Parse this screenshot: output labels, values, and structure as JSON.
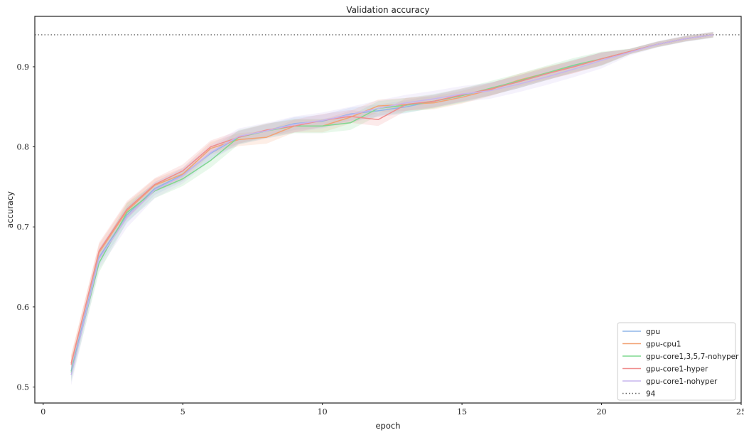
{
  "chart_data": {
    "type": "line",
    "title": "Validation accuracy",
    "xlabel": "epoch",
    "ylabel": "accuracy",
    "xlim": [
      -0.3,
      25
    ],
    "ylim": [
      0.48,
      0.963
    ],
    "xticks": [
      0,
      5,
      10,
      15,
      20,
      25
    ],
    "yticks": [
      0.5,
      0.6,
      0.7,
      0.8,
      0.9
    ],
    "x": [
      1,
      2,
      3,
      4,
      5,
      6,
      7,
      8,
      9,
      10,
      11,
      12,
      13,
      14,
      15,
      16,
      17,
      18,
      19,
      20,
      21,
      22,
      23,
      24
    ],
    "grid": false,
    "legend_position": "bottom-right",
    "reference_line": {
      "name": "94",
      "value": 0.94,
      "color": "#666666",
      "style": "dotted"
    },
    "series": [
      {
        "name": "gpu",
        "color": "#8fb6e8",
        "band": 0.008,
        "values": [
          0.52,
          0.662,
          0.715,
          0.748,
          0.765,
          0.792,
          0.812,
          0.82,
          0.829,
          0.832,
          0.841,
          0.845,
          0.85,
          0.857,
          0.864,
          0.872,
          0.881,
          0.891,
          0.901,
          0.91,
          0.919,
          0.928,
          0.935,
          0.94
        ]
      },
      {
        "name": "gpu-cpu1",
        "color": "#f2a374",
        "band": 0.008,
        "values": [
          0.53,
          0.668,
          0.72,
          0.752,
          0.766,
          0.798,
          0.809,
          0.812,
          0.826,
          0.826,
          0.837,
          0.851,
          0.853,
          0.855,
          0.862,
          0.871,
          0.883,
          0.892,
          0.9,
          0.91,
          0.919,
          0.928,
          0.935,
          0.94
        ]
      },
      {
        "name": "gpu-core1,3,5,7-nohyper",
        "color": "#7fd88f",
        "band": 0.009,
        "values": [
          0.518,
          0.655,
          0.718,
          0.745,
          0.76,
          0.783,
          0.812,
          0.82,
          0.826,
          0.826,
          0.83,
          0.848,
          0.852,
          0.857,
          0.864,
          0.873,
          0.882,
          0.892,
          0.902,
          0.91,
          0.919,
          0.928,
          0.935,
          0.94
        ]
      },
      {
        "name": "gpu-core1-hyper",
        "color": "#f08d8d",
        "band": 0.008,
        "values": [
          0.528,
          0.67,
          0.722,
          0.753,
          0.77,
          0.8,
          0.812,
          0.821,
          0.826,
          0.833,
          0.838,
          0.834,
          0.853,
          0.857,
          0.865,
          0.872,
          0.881,
          0.891,
          0.9,
          0.91,
          0.919,
          0.928,
          0.935,
          0.94
        ]
      },
      {
        "name": "gpu-core1-nohyper",
        "color": "#c7b5ee",
        "band": 0.01,
        "values": [
          0.515,
          0.66,
          0.712,
          0.746,
          0.764,
          0.793,
          0.813,
          0.82,
          0.828,
          0.833,
          0.84,
          0.848,
          0.855,
          0.86,
          0.866,
          0.87,
          0.878,
          0.887,
          0.897,
          0.908,
          0.918,
          0.928,
          0.935,
          0.94
        ]
      }
    ]
  }
}
